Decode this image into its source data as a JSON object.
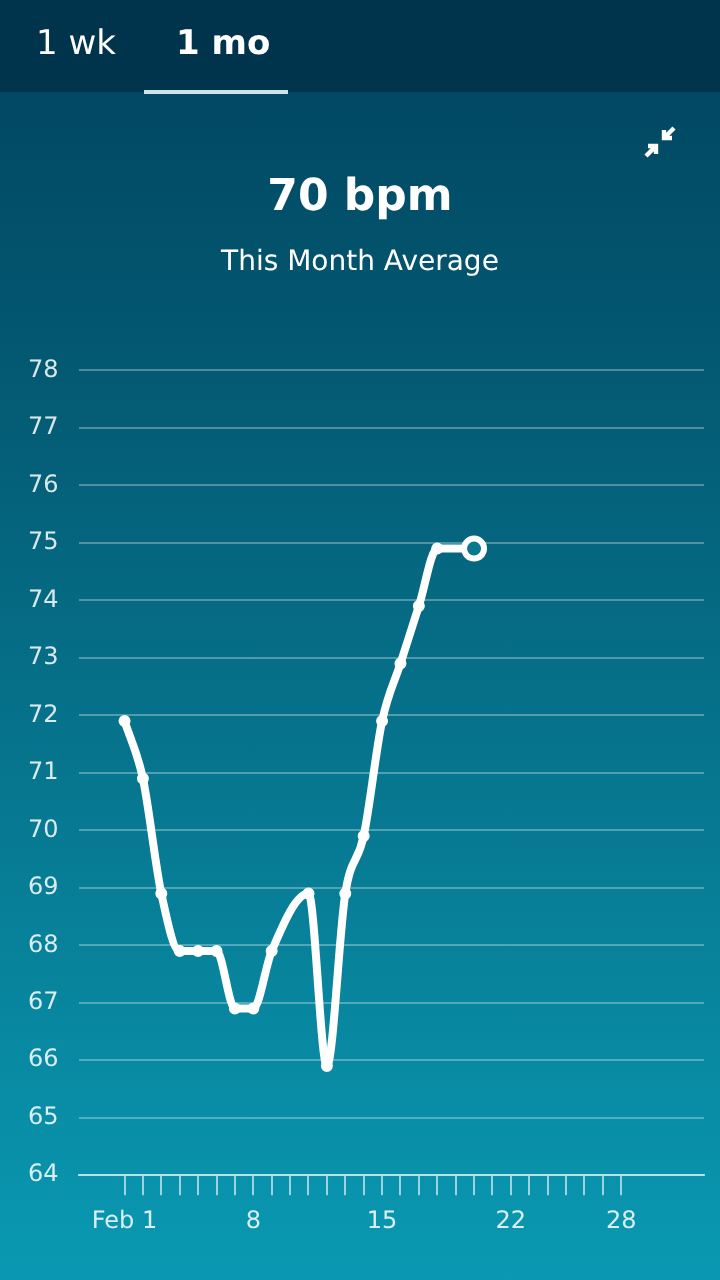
{
  "chart_data": {
    "type": "line",
    "title": "70 bpm",
    "subtitle": "This Month Average",
    "annotations": [
      "1 wk",
      "1 mo"
    ],
    "x": [
      1,
      2,
      3,
      4,
      5,
      6,
      7,
      8,
      9,
      11,
      12,
      13,
      14,
      15,
      16,
      17,
      18,
      20
    ],
    "series": [
      {
        "color": "#ffffff",
        "values": [
          71.9,
          70.9,
          68.9,
          67.9,
          67.9,
          67.9,
          66.9,
          66.9,
          67.9,
          68.9,
          65.9,
          68.9,
          69.9,
          71.9,
          72.9,
          73.9,
          74.9,
          74.9
        ]
      }
    ],
    "xlim": [
      -1.5,
      32.5
    ],
    "xticks": [
      {
        "value": 1,
        "label": "Feb 1"
      },
      {
        "value": 2,
        "label": null
      },
      {
        "value": 3,
        "label": null
      },
      {
        "value": 4,
        "label": null
      },
      {
        "value": 5,
        "label": null
      },
      {
        "value": 6,
        "label": null
      },
      {
        "value": 7,
        "label": null
      },
      8,
      {
        "value": 9,
        "label": null
      },
      {
        "value": 10,
        "label": null
      },
      {
        "value": 11,
        "label": null
      },
      {
        "value": 12,
        "label": null
      },
      {
        "value": 13,
        "label": null
      },
      {
        "value": 14,
        "label": null
      },
      15,
      {
        "value": 16,
        "label": null
      },
      {
        "value": 17,
        "label": null
      },
      {
        "value": 18,
        "label": null
      },
      {
        "value": 19,
        "label": null
      },
      {
        "value": 20,
        "label": null
      },
      {
        "value": 21,
        "label": null
      },
      22,
      {
        "value": 23,
        "label": null
      },
      {
        "value": 24,
        "label": null
      },
      {
        "value": 25,
        "label": null
      },
      {
        "value": 26,
        "label": null
      },
      {
        "value": 27,
        "label": null
      },
      28
    ],
    "ylim": [
      64,
      78
    ],
    "yticks": [
      64,
      65,
      66,
      67,
      68,
      69,
      70,
      71,
      72,
      73,
      74,
      75,
      76,
      77,
      78
    ],
    "grid": "y",
    "marker": "circle",
    "line_style": "solid",
    "legend": false
  }
}
